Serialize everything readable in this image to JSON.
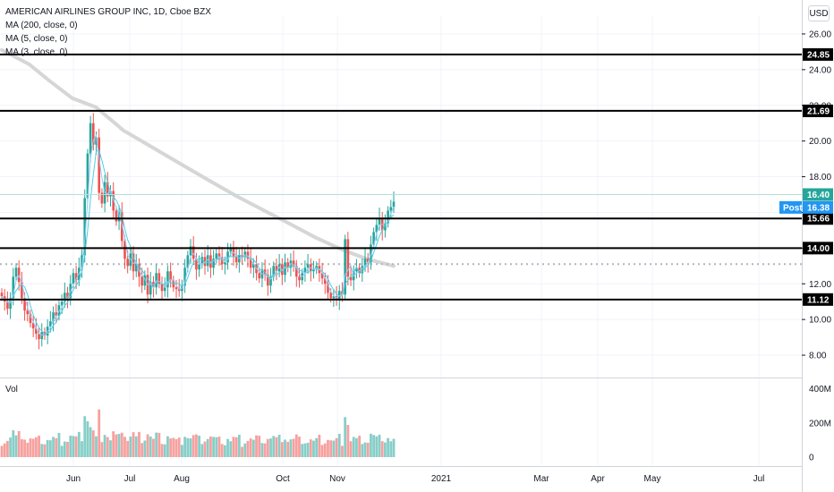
{
  "header": {
    "symbol_line": "AMERICAN AIRLINES GROUP INC, 1D, Cboe BZX",
    "indicators": [
      "MA (200, close, 0)",
      "MA (5, close, 0)",
      "MA (3, close, 0)"
    ],
    "currency": "USD",
    "volume_label": "Vol"
  },
  "chart_data": {
    "type": "candlestick",
    "price_axis": {
      "range": [
        6.8,
        27.0
      ],
      "ticks": [
        "26.00",
        "24.00",
        "22.00",
        "20.00",
        "18.00",
        "16.00",
        "14.00",
        "12.00",
        "10.00",
        "8.00"
      ]
    },
    "volume_axis": {
      "range": [
        0,
        430
      ],
      "ticks": [
        "400M",
        "200M",
        "0"
      ]
    },
    "time_axis": {
      "labels": [
        "Jun",
        "Jul",
        "Aug",
        "Oct",
        "Nov",
        "2021",
        "Mar",
        "Apr",
        "May",
        "Jul"
      ]
    },
    "levels": [
      {
        "value": 24.85,
        "label": "24.85"
      },
      {
        "value": 21.69,
        "label": "21.69"
      },
      {
        "value": 15.66,
        "label": "15.66"
      },
      {
        "value": 14.0,
        "label": "14.00"
      },
      {
        "value": 11.12,
        "label": "11.12"
      }
    ],
    "last_price": {
      "value": 16.4,
      "label": "16.40",
      "color": "#26a69a"
    },
    "post_price": {
      "value": 16.38,
      "label": "16.38",
      "tag": "Post",
      "color": "#2196f3"
    },
    "prev_close_dotted": 13.1,
    "ma200": [
      [
        0,
        25.1
      ],
      [
        0.07,
        24.3
      ],
      [
        0.12,
        23.4
      ],
      [
        0.18,
        22.4
      ],
      [
        0.24,
        21.9
      ],
      [
        0.31,
        20.6
      ],
      [
        0.38,
        19.7
      ],
      [
        0.45,
        18.8
      ],
      [
        0.52,
        17.9
      ],
      [
        0.6,
        16.9
      ],
      [
        0.67,
        16.1
      ],
      [
        0.74,
        15.3
      ],
      [
        0.8,
        14.6
      ],
      [
        0.87,
        13.9
      ],
      [
        0.93,
        13.4
      ],
      [
        1.0,
        13.0
      ]
    ],
    "closes": [
      11.3,
      11.0,
      10.6,
      11.2,
      12.4,
      12.9,
      12.1,
      11.2,
      10.5,
      10.3,
      9.8,
      9.5,
      9.2,
      8.9,
      9.3,
      9.1,
      9.6,
      9.9,
      10.4,
      10.2,
      10.8,
      11.0,
      11.5,
      11.2,
      12.0,
      12.6,
      12.2,
      12.9,
      13.6,
      16.8,
      19.3,
      21.0,
      19.8,
      20.2,
      17.1,
      16.5,
      17.7,
      16.9,
      17.2,
      16.1,
      15.5,
      16.0,
      14.4,
      13.4,
      13.0,
      13.7,
      12.7,
      13.1,
      12.4,
      11.9,
      12.5,
      11.4,
      12.1,
      11.8,
      12.6,
      12.0,
      11.6,
      11.8,
      12.7,
      12.2,
      11.8,
      11.7,
      11.6,
      11.9,
      12.9,
      13.6,
      14.1,
      13.4,
      12.8,
      13.1,
      13.5,
      13.0,
      13.6,
      12.9,
      13.4,
      13.7,
      13.5,
      13.1,
      13.2,
      13.8,
      14.0,
      13.5,
      13.2,
      13.6,
      13.5,
      13.8,
      13.4,
      12.9,
      13.1,
      12.6,
      12.3,
      12.8,
      12.5,
      11.9,
      12.4,
      13.0,
      12.7,
      13.1,
      12.5,
      13.2,
      12.9,
      13.3,
      13.0,
      12.4,
      12.2,
      12.6,
      12.9,
      13.1,
      12.7,
      12.8,
      13.0,
      12.6,
      12.3,
      12.0,
      11.5,
      11.2,
      11.3,
      11.1,
      11.6,
      11.4,
      14.5,
      12.4,
      12.2,
      12.7,
      12.9,
      12.6,
      13.0,
      13.4,
      13.2,
      14.2,
      14.9,
      15.3,
      15.7,
      15.0,
      15.4,
      16.1,
      16.3,
      16.6
    ]
  }
}
